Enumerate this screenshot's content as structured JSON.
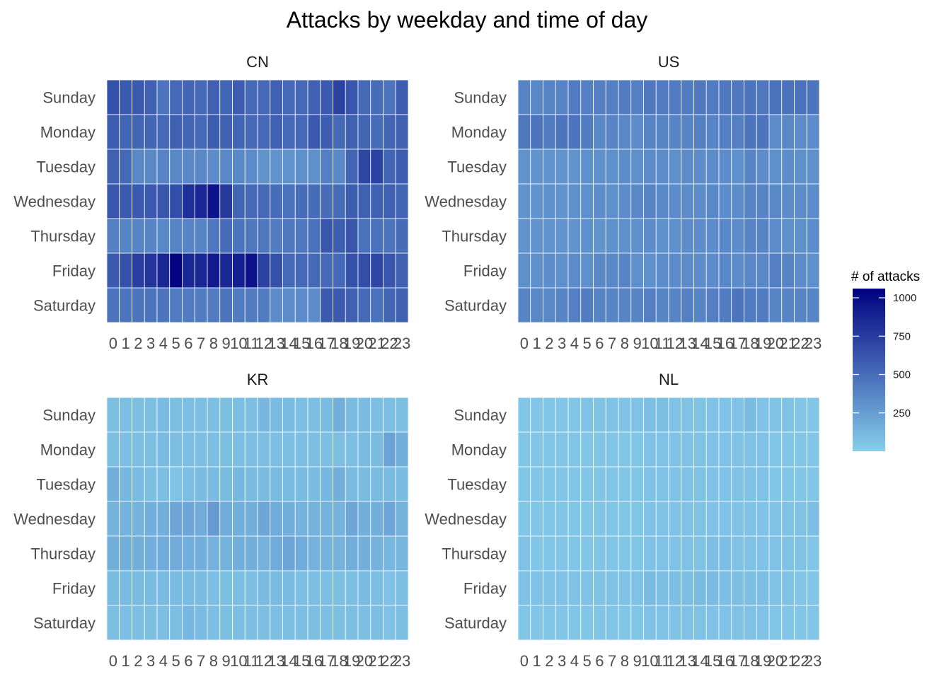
{
  "chart_data": {
    "type": "heatmap",
    "title": "Attacks by weekday and time of day",
    "days": [
      "Sunday",
      "Monday",
      "Tuesday",
      "Wednesday",
      "Thursday",
      "Friday",
      "Saturday"
    ],
    "hours": [
      "0",
      "1",
      "2",
      "3",
      "4",
      "5",
      "6",
      "7",
      "8",
      "9",
      "10",
      "11",
      "12",
      "13",
      "14",
      "15",
      "16",
      "17",
      "18",
      "19",
      "20",
      "21",
      "22",
      "23"
    ],
    "legend": {
      "title": "# of attacks",
      "ticks": [
        250,
        500,
        750,
        1000
      ],
      "min": 0,
      "max": 1060,
      "low_color": "#87CEEB",
      "high_color": "#000080"
    },
    "panels": [
      {
        "name": "CN",
        "values": [
          [
            640,
            600,
            600,
            560,
            460,
            520,
            540,
            520,
            560,
            540,
            580,
            520,
            520,
            560,
            520,
            520,
            560,
            600,
            720,
            620,
            520,
            500,
            460,
            580
          ],
          [
            580,
            540,
            540,
            540,
            520,
            560,
            540,
            520,
            580,
            560,
            540,
            520,
            520,
            560,
            520,
            520,
            600,
            580,
            520,
            560,
            540,
            500,
            540,
            560
          ],
          [
            560,
            520,
            360,
            360,
            380,
            360,
            360,
            360,
            340,
            360,
            360,
            340,
            300,
            300,
            300,
            320,
            320,
            400,
            360,
            540,
            700,
            720,
            540,
            580
          ],
          [
            620,
            600,
            600,
            600,
            620,
            660,
            820,
            860,
            960,
            760,
            540,
            520,
            520,
            500,
            480,
            500,
            500,
            500,
            500,
            580,
            560,
            560,
            560,
            540
          ],
          [
            400,
            380,
            380,
            380,
            360,
            380,
            380,
            380,
            440,
            500,
            460,
            440,
            440,
            420,
            440,
            440,
            480,
            620,
            580,
            620,
            480,
            480,
            460,
            500
          ],
          [
            600,
            640,
            740,
            780,
            860,
            1040,
            860,
            860,
            920,
            860,
            900,
            960,
            720,
            640,
            520,
            520,
            520,
            520,
            520,
            640,
            660,
            700,
            620,
            560
          ],
          [
            460,
            460,
            460,
            460,
            460,
            420,
            420,
            420,
            420,
            460,
            420,
            420,
            420,
            340,
            340,
            340,
            340,
            600,
            600,
            560,
            520,
            480,
            540,
            560
          ]
        ]
      },
      {
        "name": "US",
        "values": [
          [
            380,
            360,
            380,
            380,
            420,
            400,
            400,
            400,
            420,
            400,
            440,
            420,
            420,
            420,
            440,
            420,
            440,
            440,
            460,
            440,
            480,
            480,
            480,
            460
          ],
          [
            440,
            460,
            420,
            460,
            460,
            420,
            360,
            380,
            360,
            340,
            380,
            380,
            380,
            380,
            400,
            380,
            400,
            400,
            460,
            460,
            340,
            360,
            340,
            340
          ],
          [
            300,
            300,
            300,
            300,
            300,
            320,
            320,
            320,
            340,
            320,
            340,
            340,
            320,
            340,
            340,
            340,
            340,
            320,
            380,
            340,
            320,
            340,
            320,
            320
          ],
          [
            300,
            300,
            320,
            300,
            320,
            320,
            340,
            320,
            340,
            360,
            380,
            360,
            340,
            340,
            340,
            360,
            340,
            340,
            380,
            380,
            360,
            340,
            340,
            340
          ],
          [
            300,
            300,
            300,
            300,
            300,
            320,
            300,
            320,
            320,
            320,
            340,
            320,
            320,
            340,
            340,
            340,
            360,
            340,
            380,
            380,
            340,
            320,
            320,
            340
          ],
          [
            320,
            320,
            340,
            320,
            340,
            320,
            360,
            360,
            380,
            320,
            320,
            340,
            340,
            340,
            340,
            340,
            360,
            340,
            360,
            360,
            400,
            380,
            340,
            320
          ],
          [
            380,
            360,
            360,
            380,
            400,
            420,
            380,
            380,
            380,
            380,
            400,
            380,
            380,
            400,
            380,
            400,
            420,
            460,
            420,
            420,
            380,
            380,
            380,
            380
          ]
        ]
      },
      {
        "name": "KR",
        "values": [
          [
            80,
            80,
            80,
            80,
            100,
            80,
            80,
            80,
            80,
            80,
            80,
            80,
            120,
            100,
            100,
            80,
            80,
            100,
            160,
            100,
            100,
            80,
            80,
            80
          ],
          [
            80,
            80,
            80,
            80,
            100,
            80,
            80,
            80,
            80,
            80,
            80,
            80,
            80,
            80,
            80,
            80,
            80,
            80,
            80,
            80,
            100,
            100,
            220,
            160
          ],
          [
            160,
            120,
            100,
            80,
            80,
            60,
            80,
            100,
            100,
            100,
            120,
            100,
            100,
            100,
            100,
            100,
            100,
            120,
            160,
            100,
            100,
            100,
            100,
            100
          ],
          [
            140,
            140,
            140,
            160,
            160,
            200,
            200,
            180,
            260,
            180,
            160,
            160,
            200,
            180,
            160,
            140,
            140,
            140,
            140,
            200,
            160,
            160,
            200,
            140
          ],
          [
            160,
            160,
            160,
            160,
            180,
            180,
            160,
            160,
            140,
            140,
            160,
            160,
            140,
            180,
            200,
            180,
            140,
            140,
            140,
            160,
            160,
            140,
            120,
            120
          ],
          [
            100,
            100,
            100,
            100,
            100,
            100,
            100,
            100,
            80,
            80,
            80,
            80,
            100,
            100,
            100,
            80,
            80,
            80,
            80,
            80,
            100,
            80,
            60,
            80
          ],
          [
            80,
            80,
            80,
            80,
            80,
            80,
            120,
            100,
            80,
            80,
            80,
            80,
            80,
            80,
            80,
            80,
            80,
            80,
            80,
            80,
            80,
            80,
            60,
            80
          ]
        ]
      },
      {
        "name": "NL",
        "values": [
          [
            40,
            40,
            40,
            40,
            40,
            60,
            60,
            60,
            60,
            60,
            80,
            80,
            60,
            60,
            60,
            60,
            60,
            60,
            100,
            60,
            60,
            60,
            40,
            40
          ],
          [
            40,
            40,
            40,
            40,
            40,
            40,
            40,
            40,
            40,
            40,
            60,
            60,
            60,
            60,
            60,
            60,
            60,
            60,
            60,
            60,
            40,
            40,
            40,
            40
          ],
          [
            40,
            40,
            40,
            40,
            40,
            40,
            40,
            40,
            40,
            40,
            60,
            60,
            60,
            60,
            60,
            60,
            60,
            60,
            60,
            60,
            40,
            40,
            40,
            40
          ],
          [
            40,
            40,
            40,
            40,
            40,
            40,
            40,
            40,
            40,
            40,
            60,
            60,
            60,
            60,
            60,
            60,
            60,
            60,
            60,
            60,
            60,
            60,
            60,
            80
          ],
          [
            60,
            40,
            40,
            40,
            40,
            40,
            40,
            40,
            40,
            40,
            60,
            60,
            60,
            60,
            60,
            80,
            80,
            60,
            60,
            60,
            60,
            60,
            60,
            40
          ],
          [
            60,
            60,
            60,
            60,
            60,
            60,
            60,
            60,
            60,
            60,
            100,
            80,
            80,
            80,
            100,
            100,
            80,
            80,
            80,
            80,
            60,
            60,
            40,
            40
          ],
          [
            40,
            40,
            40,
            40,
            40,
            40,
            40,
            40,
            40,
            40,
            60,
            60,
            60,
            60,
            60,
            60,
            60,
            60,
            60,
            60,
            40,
            40,
            40,
            40
          ]
        ]
      }
    ]
  }
}
